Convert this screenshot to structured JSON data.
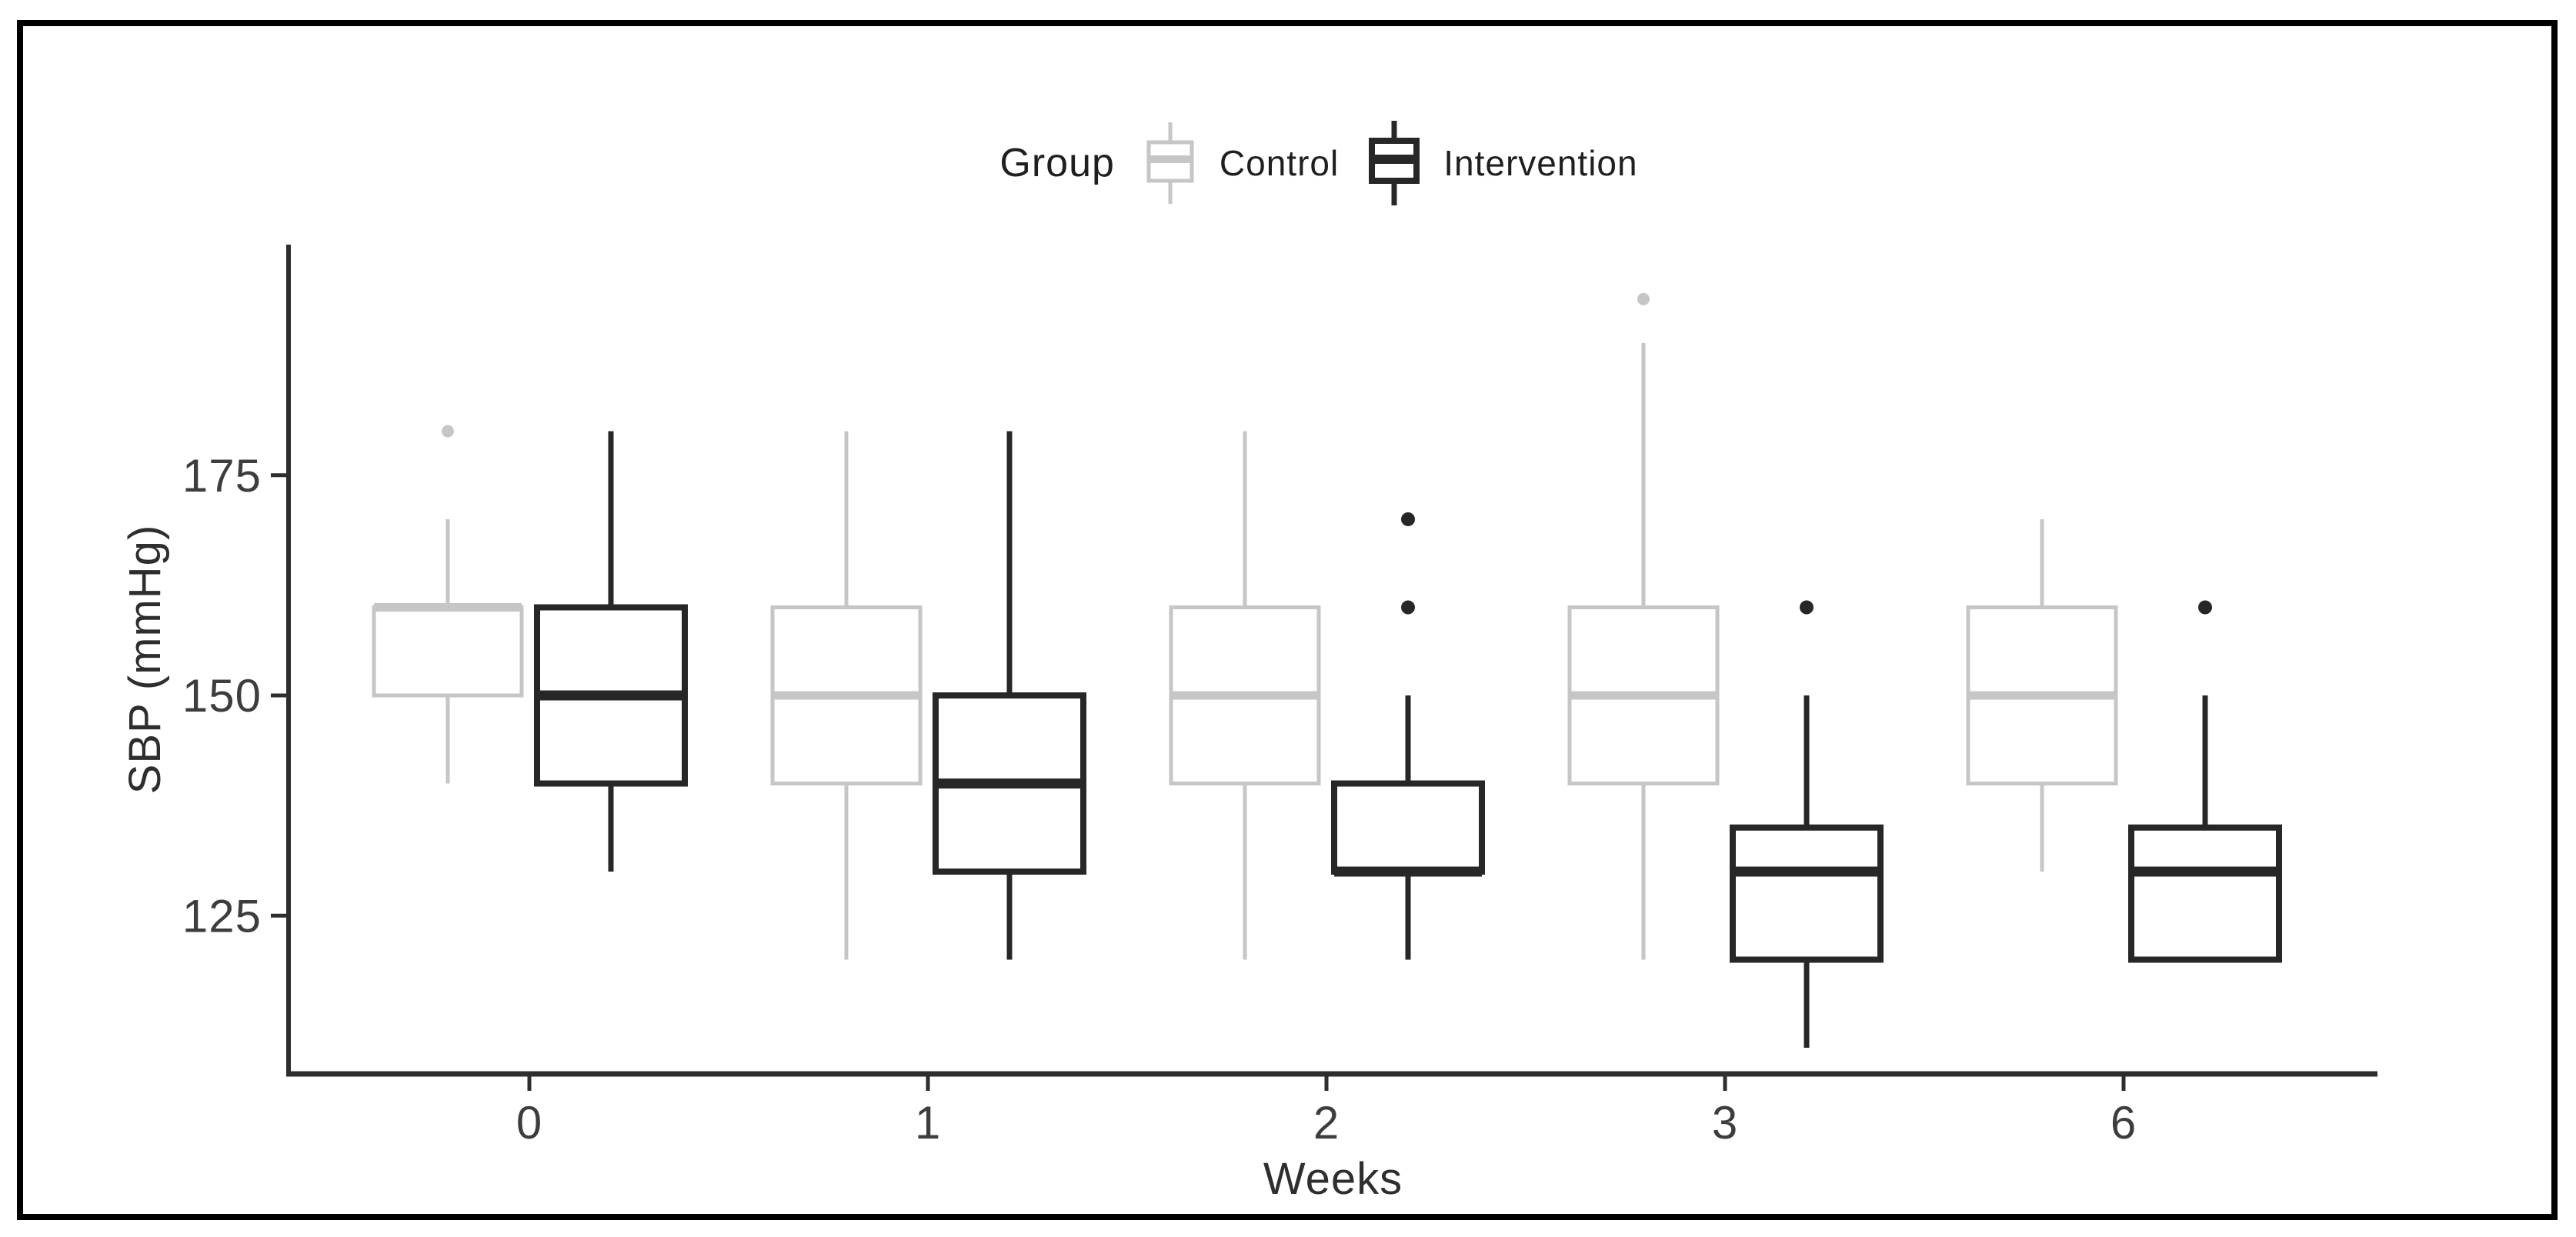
{
  "figure": {
    "background": "#ffffff",
    "border_color": "#000000"
  },
  "legend": {
    "title": "Group",
    "items": [
      {
        "label": "Control",
        "color": "#c6c6c6"
      },
      {
        "label": "Intervention",
        "color": "#272727"
      }
    ]
  },
  "chart_data": {
    "type": "boxplot",
    "title": "",
    "xlabel": "Weeks",
    "ylabel": "SBP (mmHg)",
    "categories": [
      "0",
      "1",
      "2",
      "3",
      "6"
    ],
    "yticks": [
      125,
      150,
      175
    ],
    "ylim": [
      107,
      201
    ],
    "grid": false,
    "legend_position": "top",
    "axis_color": "#2e2e2e",
    "tick_label_color": "#3d3d3d",
    "series": [
      {
        "name": "Control",
        "color": "#c6c6c6",
        "boxes": [
          {
            "week": "0",
            "low": 140,
            "q1": 150,
            "median": 160,
            "q3": 160,
            "high": 170,
            "outliers": [
              180
            ]
          },
          {
            "week": "1",
            "low": 120,
            "q1": 140,
            "median": 150,
            "q3": 160,
            "high": 180,
            "outliers": []
          },
          {
            "week": "2",
            "low": 120,
            "q1": 140,
            "median": 150,
            "q3": 160,
            "high": 180,
            "outliers": []
          },
          {
            "week": "3",
            "low": 120,
            "q1": 140,
            "median": 150,
            "q3": 160,
            "high": 190,
            "outliers": [
              195
            ]
          },
          {
            "week": "6",
            "low": 130,
            "q1": 140,
            "median": 150,
            "q3": 160,
            "high": 170,
            "outliers": []
          }
        ]
      },
      {
        "name": "Intervention",
        "color": "#272727",
        "boxes": [
          {
            "week": "0",
            "low": 130,
            "q1": 140,
            "median": 150,
            "q3": 160,
            "high": 180,
            "outliers": []
          },
          {
            "week": "1",
            "low": 120,
            "q1": 130,
            "median": 140,
            "q3": 150,
            "high": 180,
            "outliers": []
          },
          {
            "week": "2",
            "low": 120,
            "q1": 130,
            "median": 130,
            "q3": 140,
            "high": 150,
            "outliers": [
              160,
              170
            ]
          },
          {
            "week": "3",
            "low": 110,
            "q1": 120,
            "median": 130,
            "q3": 135,
            "high": 150,
            "outliers": [
              160
            ]
          },
          {
            "week": "6",
            "low": 120,
            "q1": 120,
            "median": 130,
            "q3": 135,
            "high": 150,
            "outliers": [
              160
            ]
          }
        ]
      }
    ]
  }
}
